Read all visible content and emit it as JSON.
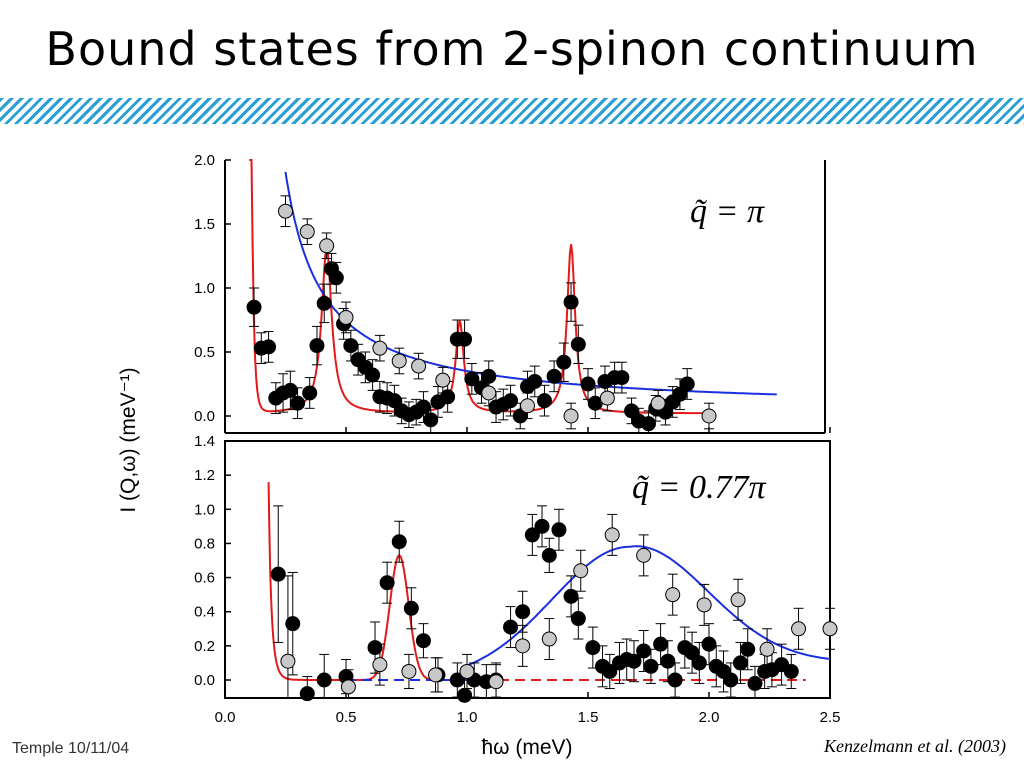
{
  "slide": {
    "title": "Bound states from 2-spinon continuum",
    "footer": "Temple 10/11/04",
    "citation": "Kenzelmann et al. (2003)"
  },
  "colors": {
    "red_fit": "#e21a1a",
    "blue_fit": "#1a2fe0",
    "accent_hatch": "#2a9fd6",
    "gray_marker": "#c8c8c8",
    "black_marker": "#000000"
  },
  "chart_data": [
    {
      "type": "scatter",
      "panel": "top",
      "annotation": "q̃ = π",
      "xlabel": "ħω (meV)",
      "ylabel": "I (Q,ω) (meV⁻¹)",
      "xlim": [
        0,
        2.5
      ],
      "ylim": [
        -0.05,
        2.0
      ],
      "yticks": [
        "0.0",
        "0.5",
        "1.0",
        "1.5",
        "2.0"
      ],
      "series": [
        {
          "marker": "black",
          "points": [
            {
              "x": 0.12,
              "y": 0.85,
              "err": 0.15
            },
            {
              "x": 0.15,
              "y": 0.53,
              "err": 0.12
            },
            {
              "x": 0.18,
              "y": 0.54,
              "err": 0.12
            },
            {
              "x": 0.21,
              "y": 0.14,
              "err": 0.12
            },
            {
              "x": 0.24,
              "y": 0.18,
              "err": 0.15
            },
            {
              "x": 0.27,
              "y": 0.2,
              "err": 0.15
            },
            {
              "x": 0.3,
              "y": 0.1,
              "err": 0.12
            },
            {
              "x": 0.35,
              "y": 0.18,
              "err": 0.12
            },
            {
              "x": 0.38,
              "y": 0.55,
              "err": 0.15
            },
            {
              "x": 0.41,
              "y": 0.88,
              "err": 0.15
            },
            {
              "x": 0.44,
              "y": 1.15,
              "err": 0.12
            },
            {
              "x": 0.46,
              "y": 1.08,
              "err": 0.12
            },
            {
              "x": 0.49,
              "y": 0.72,
              "err": 0.12
            },
            {
              "x": 0.52,
              "y": 0.55,
              "err": 0.12
            },
            {
              "x": 0.55,
              "y": 0.44,
              "err": 0.12
            },
            {
              "x": 0.58,
              "y": 0.38,
              "err": 0.12
            },
            {
              "x": 0.61,
              "y": 0.32,
              "err": 0.12
            },
            {
              "x": 0.64,
              "y": 0.15,
              "err": 0.12
            },
            {
              "x": 0.67,
              "y": 0.14,
              "err": 0.12
            },
            {
              "x": 0.7,
              "y": 0.12,
              "err": 0.12
            },
            {
              "x": 0.73,
              "y": 0.04,
              "err": 0.1
            },
            {
              "x": 0.76,
              "y": 0.01,
              "err": 0.1
            },
            {
              "x": 0.79,
              "y": 0.03,
              "err": 0.1
            },
            {
              "x": 0.82,
              "y": 0.07,
              "err": 0.12
            },
            {
              "x": 0.85,
              "y": -0.03,
              "err": 0.1
            },
            {
              "x": 0.88,
              "y": 0.11,
              "err": 0.12
            },
            {
              "x": 0.92,
              "y": 0.15,
              "err": 0.12
            },
            {
              "x": 0.96,
              "y": 0.6,
              "err": 0.15
            },
            {
              "x": 0.99,
              "y": 0.6,
              "err": 0.15
            },
            {
              "x": 1.02,
              "y": 0.29,
              "err": 0.12
            },
            {
              "x": 1.06,
              "y": 0.22,
              "err": 0.12
            },
            {
              "x": 1.09,
              "y": 0.31,
              "err": 0.12
            },
            {
              "x": 1.12,
              "y": 0.07,
              "err": 0.12
            },
            {
              "x": 1.15,
              "y": 0.09,
              "err": 0.12
            },
            {
              "x": 1.18,
              "y": 0.12,
              "err": 0.12
            },
            {
              "x": 1.22,
              "y": 0.0,
              "err": 0.1
            },
            {
              "x": 1.25,
              "y": 0.23,
              "err": 0.12
            },
            {
              "x": 1.28,
              "y": 0.27,
              "err": 0.12
            },
            {
              "x": 1.32,
              "y": 0.12,
              "err": 0.12
            },
            {
              "x": 1.36,
              "y": 0.31,
              "err": 0.12
            },
            {
              "x": 1.4,
              "y": 0.42,
              "err": 0.15
            },
            {
              "x": 1.43,
              "y": 0.89,
              "err": 0.15
            },
            {
              "x": 1.46,
              "y": 0.56,
              "err": 0.15
            },
            {
              "x": 1.5,
              "y": 0.25,
              "err": 0.12
            },
            {
              "x": 1.53,
              "y": 0.1,
              "err": 0.12
            },
            {
              "x": 1.57,
              "y": 0.27,
              "err": 0.12
            },
            {
              "x": 1.61,
              "y": 0.3,
              "err": 0.12
            },
            {
              "x": 1.64,
              "y": 0.3,
              "err": 0.12
            },
            {
              "x": 1.68,
              "y": 0.04,
              "err": 0.1
            },
            {
              "x": 1.71,
              "y": -0.04,
              "err": 0.1
            },
            {
              "x": 1.75,
              "y": -0.06,
              "err": 0.1
            },
            {
              "x": 1.78,
              "y": 0.06,
              "err": 0.1
            },
            {
              "x": 1.82,
              "y": 0.03,
              "err": 0.1
            },
            {
              "x": 1.85,
              "y": 0.11,
              "err": 0.12
            },
            {
              "x": 1.88,
              "y": 0.17,
              "err": 0.12
            },
            {
              "x": 1.91,
              "y": 0.25,
              "err": 0.12
            }
          ]
        },
        {
          "marker": "gray",
          "points": [
            {
              "x": 0.25,
              "y": 1.6,
              "err": 0.12
            },
            {
              "x": 0.34,
              "y": 1.44,
              "err": 0.1
            },
            {
              "x": 0.42,
              "y": 1.33,
              "err": 0.1
            },
            {
              "x": 0.5,
              "y": 0.77,
              "err": 0.12
            },
            {
              "x": 0.64,
              "y": 0.53,
              "err": 0.1
            },
            {
              "x": 0.72,
              "y": 0.43,
              "err": 0.1
            },
            {
              "x": 0.8,
              "y": 0.39,
              "err": 0.1
            },
            {
              "x": 0.9,
              "y": 0.28,
              "err": 0.1
            },
            {
              "x": 1.09,
              "y": 0.18,
              "err": 0.1
            },
            {
              "x": 1.25,
              "y": 0.08,
              "err": 0.1
            },
            {
              "x": 1.43,
              "y": 0.0,
              "err": 0.1
            },
            {
              "x": 1.58,
              "y": 0.14,
              "err": 0.1
            },
            {
              "x": 1.79,
              "y": 0.1,
              "err": 0.1
            },
            {
              "x": 2.0,
              "y": 0.0,
              "err": 0.1
            }
          ]
        }
      ],
      "fits": [
        {
          "color": "red",
          "shape": "spinon bound states: peaks near 0.42, 0.97, 1.43 meV on low background"
        },
        {
          "color": "blue",
          "shape": "smooth decaying continuum from 2.0 at 0.25 meV to ~0.12 at 2.28 meV"
        }
      ]
    },
    {
      "type": "scatter",
      "panel": "bottom",
      "annotation": "q̃ = 0.77π",
      "xlabel": "ħω (meV)",
      "ylabel": "I (Q,ω) (meV⁻¹)",
      "xlim": [
        0,
        2.5
      ],
      "ylim": [
        -0.06,
        1.4
      ],
      "xticks": [
        "0.0",
        "0.5",
        "1.0",
        "1.5",
        "2.0",
        "2.5"
      ],
      "yticks": [
        "0.0",
        "0.2",
        "0.4",
        "0.6",
        "0.8",
        "1.0",
        "1.2",
        "1.4"
      ],
      "series": [
        {
          "marker": "black",
          "points": [
            {
              "x": 0.22,
              "y": 0.62,
              "err": 0.4
            },
            {
              "x": 0.28,
              "y": 0.33,
              "err": 0.3
            },
            {
              "x": 0.34,
              "y": -0.08,
              "err": 0.1
            },
            {
              "x": 0.41,
              "y": 0.0,
              "err": 0.15
            },
            {
              "x": 0.5,
              "y": 0.02,
              "err": 0.1
            },
            {
              "x": 0.62,
              "y": 0.19,
              "err": 0.15
            },
            {
              "x": 0.67,
              "y": 0.57,
              "err": 0.12
            },
            {
              "x": 0.72,
              "y": 0.81,
              "err": 0.12
            },
            {
              "x": 0.77,
              "y": 0.42,
              "err": 0.12
            },
            {
              "x": 0.82,
              "y": 0.23,
              "err": 0.1
            },
            {
              "x": 0.88,
              "y": 0.03,
              "err": 0.1
            },
            {
              "x": 0.96,
              "y": 0.0,
              "err": 0.1
            },
            {
              "x": 0.99,
              "y": -0.09,
              "err": 0.1
            },
            {
              "x": 1.03,
              "y": 0.0,
              "err": 0.1
            },
            {
              "x": 1.08,
              "y": -0.01,
              "err": 0.1
            },
            {
              "x": 1.12,
              "y": 0.0,
              "err": 0.1
            },
            {
              "x": 1.18,
              "y": 0.31,
              "err": 0.12
            },
            {
              "x": 1.23,
              "y": 0.4,
              "err": 0.12
            },
            {
              "x": 1.27,
              "y": 0.85,
              "err": 0.12
            },
            {
              "x": 1.31,
              "y": 0.9,
              "err": 0.12
            },
            {
              "x": 1.34,
              "y": 0.73,
              "err": 0.1
            },
            {
              "x": 1.38,
              "y": 0.88,
              "err": 0.12
            },
            {
              "x": 1.43,
              "y": 0.49,
              "err": 0.12
            },
            {
              "x": 1.46,
              "y": 0.36,
              "err": 0.12
            },
            {
              "x": 1.52,
              "y": 0.19,
              "err": 0.12
            },
            {
              "x": 1.56,
              "y": 0.08,
              "err": 0.12
            },
            {
              "x": 1.59,
              "y": 0.05,
              "err": 0.1
            },
            {
              "x": 1.63,
              "y": 0.1,
              "err": 0.12
            },
            {
              "x": 1.66,
              "y": 0.12,
              "err": 0.12
            },
            {
              "x": 1.69,
              "y": 0.11,
              "err": 0.12
            },
            {
              "x": 1.73,
              "y": 0.17,
              "err": 0.12
            },
            {
              "x": 1.76,
              "y": 0.08,
              "err": 0.1
            },
            {
              "x": 1.8,
              "y": 0.21,
              "err": 0.12
            },
            {
              "x": 1.83,
              "y": 0.11,
              "err": 0.12
            },
            {
              "x": 1.86,
              "y": 0.0,
              "err": 0.1
            },
            {
              "x": 1.9,
              "y": 0.19,
              "err": 0.12
            },
            {
              "x": 1.93,
              "y": 0.16,
              "err": 0.12
            },
            {
              "x": 1.96,
              "y": 0.1,
              "err": 0.12
            },
            {
              "x": 2.0,
              "y": 0.21,
              "err": 0.12
            },
            {
              "x": 2.03,
              "y": 0.08,
              "err": 0.12
            },
            {
              "x": 2.06,
              "y": 0.05,
              "err": 0.12
            },
            {
              "x": 2.09,
              "y": 0.0,
              "err": 0.1
            },
            {
              "x": 2.13,
              "y": 0.1,
              "err": 0.12
            },
            {
              "x": 2.16,
              "y": 0.18,
              "err": 0.12
            },
            {
              "x": 2.19,
              "y": -0.02,
              "err": 0.1
            },
            {
              "x": 2.23,
              "y": 0.05,
              "err": 0.1
            },
            {
              "x": 2.26,
              "y": 0.06,
              "err": 0.1
            },
            {
              "x": 2.3,
              "y": 0.09,
              "err": 0.12
            },
            {
              "x": 2.34,
              "y": 0.05,
              "err": 0.1
            }
          ]
        },
        {
          "marker": "gray",
          "points": [
            {
              "x": 0.26,
              "y": 0.11,
              "err": 0.5
            },
            {
              "x": 0.51,
              "y": -0.04,
              "err": 0.1
            },
            {
              "x": 0.64,
              "y": 0.09,
              "err": 0.12
            },
            {
              "x": 0.76,
              "y": 0.05,
              "err": 0.1
            },
            {
              "x": 0.87,
              "y": 0.03,
              "err": 0.1
            },
            {
              "x": 1.0,
              "y": 0.05,
              "err": 0.1
            },
            {
              "x": 1.12,
              "y": -0.01,
              "err": 0.1
            },
            {
              "x": 1.23,
              "y": 0.2,
              "err": 0.12
            },
            {
              "x": 1.34,
              "y": 0.24,
              "err": 0.12
            },
            {
              "x": 1.47,
              "y": 0.64,
              "err": 0.12
            },
            {
              "x": 1.6,
              "y": 0.85,
              "err": 0.12
            },
            {
              "x": 1.73,
              "y": 0.73,
              "err": 0.12
            },
            {
              "x": 1.85,
              "y": 0.5,
              "err": 0.12
            },
            {
              "x": 1.98,
              "y": 0.44,
              "err": 0.12
            },
            {
              "x": 2.12,
              "y": 0.47,
              "err": 0.12
            },
            {
              "x": 2.24,
              "y": 0.18,
              "err": 0.12
            },
            {
              "x": 2.37,
              "y": 0.3,
              "err": 0.12
            },
            {
              "x": 2.5,
              "y": 0.3,
              "err": 0.12
            }
          ]
        }
      ],
      "fits": [
        {
          "color": "red",
          "shape": "steep decay near 0.2 meV, bound-state peak at 0.72 meV (0.73), dashed flat line at 0.0 beyond 1.0 meV"
        },
        {
          "color": "blue",
          "shape": "dashed near zero to 1.0 meV, broad continuum peak 0.78 at 1.65 meV"
        }
      ]
    }
  ]
}
